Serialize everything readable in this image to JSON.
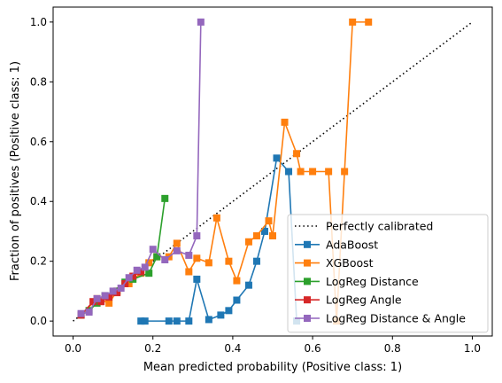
{
  "chart_data": {
    "type": "line",
    "xlabel": "Mean predicted probability (Positive class: 1)",
    "ylabel": "Fraction of positives (Positive class: 1)",
    "xlim": [
      -0.05,
      1.05
    ],
    "ylim": [
      -0.05,
      1.05
    ],
    "xticks": [
      "0.0",
      "0.2",
      "0.4",
      "0.6",
      "0.8",
      "1.0"
    ],
    "yticks": [
      "0.0",
      "0.2",
      "0.4",
      "0.6",
      "0.8",
      "1.0"
    ],
    "grid": false,
    "legend_position": "lower right",
    "reference": {
      "name": "Perfectly calibrated",
      "style": "dotted",
      "color": "#000000",
      "points": [
        [
          0,
          0
        ],
        [
          1,
          1
        ]
      ]
    },
    "series": [
      {
        "name": "AdaBoost",
        "color": "#1f77b4",
        "points": [
          [
            0.17,
            0.0
          ],
          [
            0.18,
            0.0
          ],
          [
            0.24,
            0.0
          ],
          [
            0.26,
            0.0
          ],
          [
            0.29,
            0.0
          ],
          [
            0.31,
            0.14
          ],
          [
            0.34,
            0.005
          ],
          [
            0.37,
            0.02
          ],
          [
            0.39,
            0.035
          ],
          [
            0.41,
            0.07
          ],
          [
            0.44,
            0.12
          ],
          [
            0.46,
            0.2
          ],
          [
            0.48,
            0.3
          ],
          [
            0.51,
            0.545
          ],
          [
            0.54,
            0.5
          ],
          [
            0.56,
            0.0
          ]
        ]
      },
      {
        "name": "XGBoost",
        "color": "#ff7f0e",
        "points": [
          [
            0.02,
            0.02
          ],
          [
            0.06,
            0.075
          ],
          [
            0.09,
            0.06
          ],
          [
            0.11,
            0.1
          ],
          [
            0.14,
            0.125
          ],
          [
            0.17,
            0.16
          ],
          [
            0.19,
            0.195
          ],
          [
            0.21,
            0.215
          ],
          [
            0.24,
            0.215
          ],
          [
            0.26,
            0.26
          ],
          [
            0.29,
            0.165
          ],
          [
            0.31,
            0.21
          ],
          [
            0.34,
            0.195
          ],
          [
            0.36,
            0.345
          ],
          [
            0.39,
            0.2
          ],
          [
            0.41,
            0.135
          ],
          [
            0.44,
            0.265
          ],
          [
            0.46,
            0.285
          ],
          [
            0.49,
            0.335
          ],
          [
            0.5,
            0.285
          ],
          [
            0.53,
            0.665
          ],
          [
            0.56,
            0.56
          ],
          [
            0.57,
            0.5
          ],
          [
            0.6,
            0.5
          ],
          [
            0.64,
            0.5
          ],
          [
            0.66,
            0.0
          ],
          [
            0.68,
            0.5
          ],
          [
            0.7,
            1.0
          ],
          [
            0.74,
            1.0
          ]
        ]
      },
      {
        "name": "LogReg Distance",
        "color": "#2ca02c",
        "points": [
          [
            0.02,
            0.02
          ],
          [
            0.04,
            0.035
          ],
          [
            0.06,
            0.06
          ],
          [
            0.08,
            0.085
          ],
          [
            0.11,
            0.1
          ],
          [
            0.13,
            0.13
          ],
          [
            0.15,
            0.14
          ],
          [
            0.19,
            0.16
          ],
          [
            0.21,
            0.215
          ],
          [
            0.23,
            0.41
          ]
        ]
      },
      {
        "name": "LogReg Angle",
        "color": "#d62728",
        "points": [
          [
            0.02,
            0.02
          ],
          [
            0.05,
            0.065
          ],
          [
            0.07,
            0.065
          ],
          [
            0.09,
            0.08
          ],
          [
            0.11,
            0.095
          ],
          [
            0.13,
            0.125
          ],
          [
            0.15,
            0.15
          ],
          [
            0.17,
            0.165
          ]
        ]
      },
      {
        "name": "LogReg Distance & Angle",
        "color": "#9467bd",
        "points": [
          [
            0.02,
            0.025
          ],
          [
            0.04,
            0.03
          ],
          [
            0.06,
            0.075
          ],
          [
            0.08,
            0.085
          ],
          [
            0.1,
            0.1
          ],
          [
            0.12,
            0.11
          ],
          [
            0.14,
            0.145
          ],
          [
            0.16,
            0.17
          ],
          [
            0.18,
            0.18
          ],
          [
            0.2,
            0.24
          ],
          [
            0.23,
            0.205
          ],
          [
            0.26,
            0.235
          ],
          [
            0.29,
            0.22
          ],
          [
            0.31,
            0.285
          ],
          [
            0.32,
            1.0
          ]
        ]
      }
    ]
  }
}
